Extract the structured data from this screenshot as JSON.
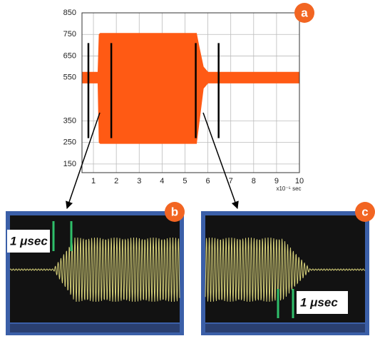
{
  "chart_data": {
    "type": "area",
    "annotation": "a",
    "x_unit_label": "x10⁻⁵ sec",
    "xlim": [
      0.5,
      10
    ],
    "xticks": [
      1,
      2,
      3,
      4,
      5,
      6,
      7,
      8,
      9,
      10
    ],
    "ylim": [
      110,
      850
    ],
    "yticks": [
      850,
      750,
      650,
      550,
      350,
      250,
      150
    ],
    "grid": true,
    "color": "#ff5a14",
    "envelope": {
      "x": [
        0.5,
        1.2,
        1.25,
        1.3,
        5.5,
        5.6,
        5.8,
        6.0,
        10
      ],
      "upper": [
        575,
        575,
        750,
        755,
        755,
        700,
        600,
        575,
        575
      ],
      "lower": [
        525,
        525,
        250,
        245,
        245,
        330,
        500,
        525,
        525
      ]
    },
    "marker_x": [
      0.78,
      1.78,
      5.47,
      6.47
    ],
    "marker_range": [
      270,
      710
    ]
  },
  "panels": [
    {
      "badge": "b",
      "scale_label": "1 μsec"
    },
    {
      "badge": "c",
      "scale_label": "1 μsec"
    }
  ]
}
